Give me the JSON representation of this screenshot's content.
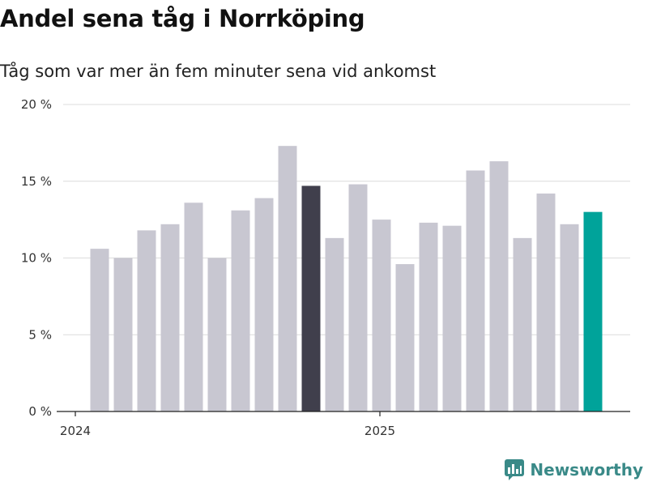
{
  "chart_data": {
    "type": "bar",
    "title": "Andel sena tåg i Norrköping",
    "subtitle": "Tåg som var mer än fem minuter sena vid ankomst",
    "xlabel": "",
    "ylabel": "",
    "ylim": [
      0,
      20
    ],
    "y_ticks": [
      0,
      5,
      10,
      15,
      20
    ],
    "y_tick_labels": [
      "0 %",
      "5 %",
      "10 %",
      "15 %",
      "20 %"
    ],
    "x_year_labels": [
      {
        "label": "2024",
        "at_index": 0
      },
      {
        "label": "2025",
        "at_index": 12
      }
    ],
    "values": [
      10.6,
      10.0,
      11.8,
      12.2,
      13.6,
      10.0,
      13.1,
      13.9,
      17.3,
      14.7,
      11.3,
      14.8,
      12.5,
      9.6,
      12.3,
      12.1,
      15.7,
      16.3,
      11.3,
      14.2,
      12.2,
      13.0
    ],
    "highlight_indices": {
      "9": "#403f4c",
      "21": "#00a39a"
    },
    "bar_color": "#c8c7d1",
    "grid": true
  },
  "brand": {
    "name": "Newsworthy",
    "color": "#3a8a88"
  }
}
